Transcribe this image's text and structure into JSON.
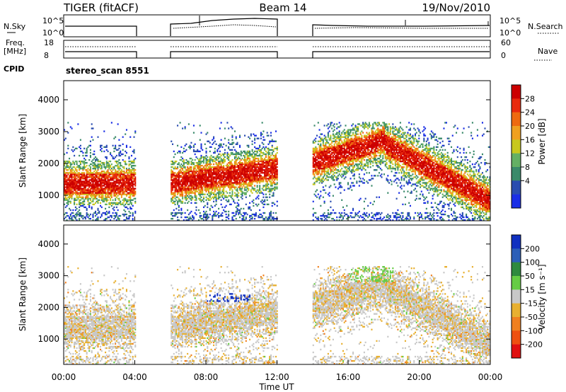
{
  "header": {
    "radar": "TIGER (fitACF)",
    "beam": "Beam 14",
    "date": "19/Nov/2010"
  },
  "noise_panel": {
    "left_label": "N.Sky",
    "right_label": "N.Search",
    "ticks_left": [
      "10^5",
      "10^0"
    ],
    "ticks_right": [
      "10^5",
      "10^0"
    ]
  },
  "freq_panel": {
    "left_label_1": "Freq.",
    "left_label_2": "[MHz]",
    "right_label": "Nave",
    "ticks_left": [
      "18",
      "8"
    ],
    "ticks_right": [
      "60",
      "0"
    ]
  },
  "cpid": {
    "label": "CPID",
    "value": "stereo_scan 8551"
  },
  "chart_data": [
    {
      "type": "heatmap",
      "name": "power",
      "xlabel": "Time UT",
      "ylabel": "Slant Range [km]",
      "x_ticks": [
        "00:00",
        "04:00",
        "08:00",
        "12:00",
        "16:00",
        "20:00",
        "00:00"
      ],
      "x_range_hours": [
        0,
        24
      ],
      "y_ticks": [
        1000,
        2000,
        3000,
        4000
      ],
      "ylim": [
        200,
        4600
      ],
      "data_gaps_hours": [
        [
          4,
          6
        ],
        [
          12,
          14
        ]
      ],
      "colorbar_label": "Power [dB]",
      "colorbar_ticks": [
        4,
        8,
        12,
        16,
        20,
        24,
        28
      ],
      "colorbar_colors": [
        "#1a2ee6",
        "#2a4db0",
        "#3a8a6a",
        "#64b064",
        "#c8c81e",
        "#f0a020",
        "#ee6a10",
        "#e82a0e",
        "#cc0000"
      ],
      "echo_bands": [
        {
          "t_start": 0,
          "t_end": 4,
          "r_low": 900,
          "r_high": 1900
        },
        {
          "t_start": 6,
          "t_end": 12,
          "r_low": 1100,
          "r_high": 2400
        },
        {
          "t_start": 14,
          "t_end": 18,
          "r_low": 2000,
          "r_high": 2900
        },
        {
          "t_start": 18,
          "t_end": 24,
          "r_low": 600,
          "r_high": 2600
        }
      ]
    },
    {
      "type": "heatmap",
      "name": "velocity",
      "xlabel": "Time UT",
      "ylabel": "Slant Range [km]",
      "x_ticks": [
        "00:00",
        "04:00",
        "08:00",
        "12:00",
        "16:00",
        "20:00",
        "00:00"
      ],
      "x_range_hours": [
        0,
        24
      ],
      "y_ticks": [
        1000,
        2000,
        3000,
        4000
      ],
      "ylim": [
        200,
        4600
      ],
      "colorbar_label": "Velocity [m s⁻¹]",
      "colorbar_ticks": [
        200,
        100,
        50,
        15,
        -15,
        -50,
        -100,
        -200
      ],
      "colorbar_colors": [
        "#1030c0",
        "#2c5fb8",
        "#2e8a3e",
        "#66cc44",
        "#c8c8c8",
        "#e8b030",
        "#f08020",
        "#ee5010",
        "#e01010"
      ]
    }
  ]
}
